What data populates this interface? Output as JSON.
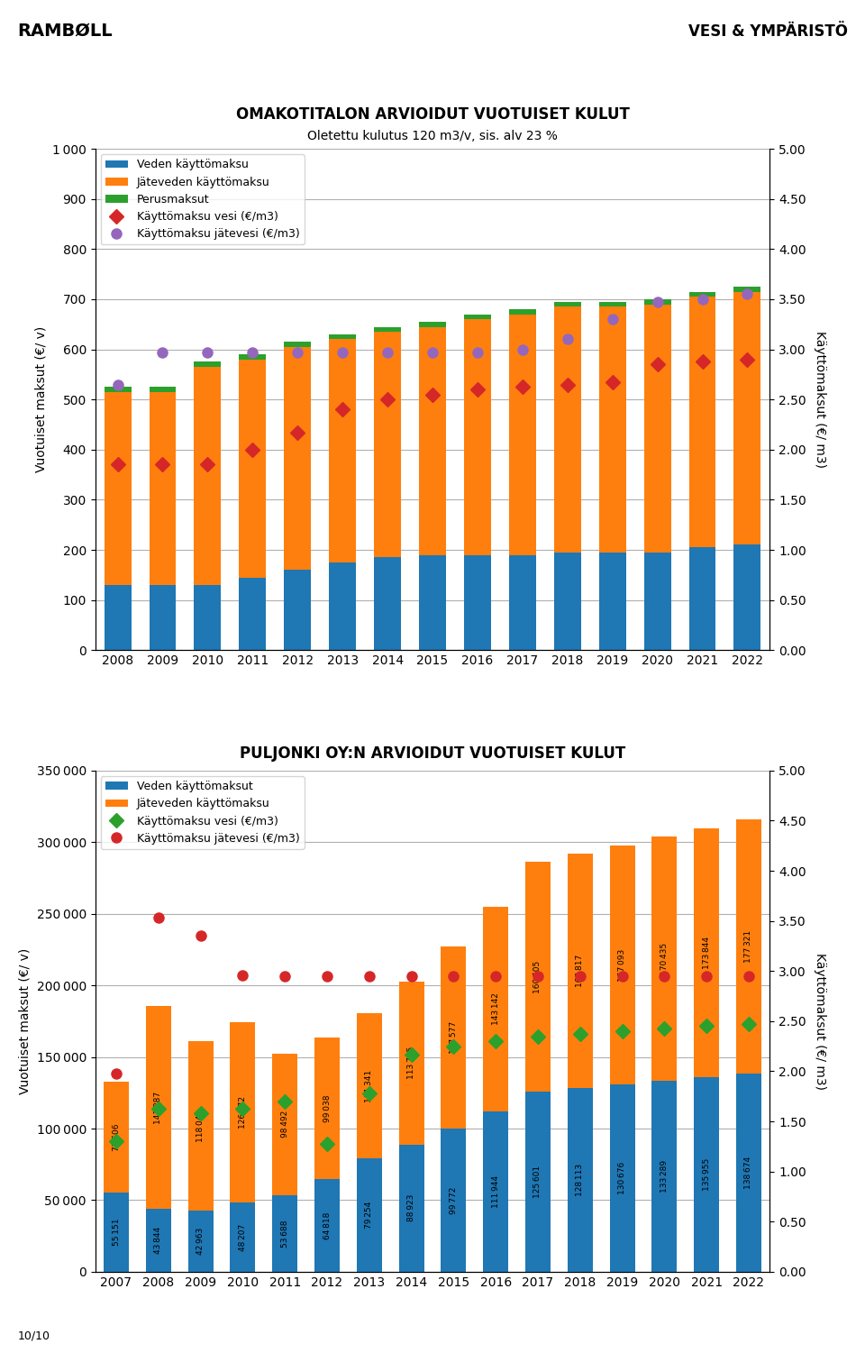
{
  "annotations": [
    "RAMBØLL",
    "VESI & YMPÄRISTÖ",
    "10/10"
  ],
  "chart_data": [
    {
      "type": "bar",
      "stacked": true,
      "grid": true,
      "legend": "upper left",
      "title": "OMAKOTITALON ARVIOIDUT VUOTUISET KULUT",
      "subtitle": "Oletettu kulutus 120 m3/v, sis. alv 23 %",
      "y_label": "Vuotuiset maksut (€/ v)",
      "y2_label": "Käyttömaksut (€/ m3)",
      "categories": [
        "2008",
        "2009",
        "2010",
        "2011",
        "2012",
        "2013",
        "2014",
        "2015",
        "2016",
        "2017",
        "2018",
        "2019",
        "2020",
        "2021",
        "2022"
      ],
      "ylim": [
        0,
        1000
      ],
      "yticks": [
        0,
        100,
        200,
        300,
        400,
        500,
        600,
        700,
        800,
        900,
        {
          "value": 1000,
          "label": "1 000"
        }
      ],
      "y2lim": [
        0,
        5
      ],
      "y2ticks": [
        {
          "value": 0,
          "label": "0.00"
        },
        {
          "value": 0.5,
          "label": "0.50"
        },
        {
          "value": 1,
          "label": "1.00"
        },
        {
          "value": 1.5,
          "label": "1.50"
        },
        {
          "value": 2,
          "label": "2.00"
        },
        {
          "value": 2.5,
          "label": "2.50"
        },
        {
          "value": 3,
          "label": "3.00"
        },
        {
          "value": 3.5,
          "label": "3.50"
        },
        {
          "value": 4,
          "label": "4.00"
        },
        {
          "value": 4.5,
          "label": "4.50"
        },
        {
          "value": 5,
          "label": "5.00"
        }
      ],
      "series": [
        {
          "name": "Veden käyttömaksu",
          "values": [
            130,
            130,
            130,
            145,
            160,
            175,
            185,
            190,
            190,
            190,
            195,
            195,
            195,
            205,
            210
          ]
        },
        {
          "name": "Jäteveden käyttömaksu",
          "values": [
            385,
            385,
            435,
            435,
            445,
            445,
            450,
            455,
            470,
            480,
            490,
            490,
            495,
            500,
            505
          ]
        },
        {
          "name": "Perusmaksut",
          "values": [
            10,
            10,
            10,
            10,
            10,
            10,
            10,
            10,
            10,
            10,
            10,
            10,
            10,
            10,
            10
          ]
        },
        {
          "name": "Käyttömaksu vesi (€/m3)",
          "type": "scatter",
          "axis": "y2",
          "marker": "diamond",
          "values": [
            1.85,
            1.85,
            1.85,
            2.0,
            2.17,
            2.4,
            2.5,
            2.55,
            2.6,
            2.63,
            2.65,
            2.67,
            2.85,
            2.88,
            2.9
          ]
        },
        {
          "name": "Käyttömaksu jätevesi (€/m3)",
          "type": "scatter",
          "axis": "y2",
          "marker": "circle",
          "values": [
            2.65,
            2.97,
            2.97,
            2.97,
            2.97,
            2.97,
            2.97,
            2.97,
            2.97,
            3.0,
            3.1,
            3.3,
            3.47,
            3.5,
            3.55
          ]
        }
      ]
    },
    {
      "type": "bar",
      "stacked": true,
      "grid": true,
      "legend": "upper left",
      "data_labels": true,
      "title": "PULJONKI OY:N ARVIOIDUT VUOTUISET KULUT",
      "y_label": "Vuotuiset maksut (€/ v)",
      "y2_label": "Käyttömaksut (€/ m3)",
      "categories": [
        "2007",
        "2008",
        "2009",
        "2010",
        "2011",
        "2012",
        "2013",
        "2014",
        "2015",
        "2016",
        "2017",
        "2018",
        "2019",
        "2020",
        "2021",
        "2022"
      ],
      "ylim": [
        0,
        350000
      ],
      "yticks": [
        0,
        {
          "value": 50000,
          "label": "50 000"
        },
        {
          "value": 100000,
          "label": "100 000"
        },
        {
          "value": 150000,
          "label": "150 000"
        },
        {
          "value": 200000,
          "label": "200 000"
        },
        {
          "value": 250000,
          "label": "250 000"
        },
        {
          "value": 300000,
          "label": "300 000"
        },
        {
          "value": 350000,
          "label": "350 000"
        }
      ],
      "y2lim": [
        0,
        5
      ],
      "y2ticks": [
        {
          "value": 0,
          "label": "0.00"
        },
        {
          "value": 0.5,
          "label": "0.50"
        },
        {
          "value": 1,
          "label": "1.00"
        },
        {
          "value": 1.5,
          "label": "1.50"
        },
        {
          "value": 2,
          "label": "2.00"
        },
        {
          "value": 2.5,
          "label": "2.50"
        },
        {
          "value": 3,
          "label": "3.00"
        },
        {
          "value": 3.5,
          "label": "3.50"
        },
        {
          "value": 4,
          "label": "4.00"
        },
        {
          "value": 4.5,
          "label": "4.50"
        },
        {
          "value": 5,
          "label": "5.00"
        }
      ],
      "series": [
        {
          "name": "Veden käyttömaksut",
          "values": [
            55151,
            43844,
            42963,
            48207,
            53688,
            64818,
            79254,
            88923,
            99772,
            111944,
            125601,
            128113,
            130676,
            133289,
            135955,
            138674
          ],
          "value_labels": [
            "55 151",
            "43 844",
            "42 963",
            "48 207",
            "53 688",
            "64 818",
            "79 254",
            "88 923",
            "99 772",
            "111 944",
            "125 601",
            "128 113",
            "130 676",
            "133 289",
            "135 955",
            "138 674"
          ]
        },
        {
          "name": "Jäteveden käyttömaksu",
          "values": [
            77606,
            141887,
            118041,
            126372,
            98492,
            99038,
            101341,
            113705,
            127577,
            143142,
            160605,
            163817,
            167093,
            170435,
            173844,
            177321
          ],
          "value_labels": [
            "77 606",
            "141 887",
            "118 041",
            "126 372",
            "98 492",
            "99 038",
            "101 341",
            "113 705",
            "127 577",
            "143 142",
            "160 605",
            "163 817",
            "167 093",
            "170 435",
            "173 844",
            "177 321"
          ]
        },
        {
          "name": "Käyttömaksu vesi (€/m3)",
          "type": "scatter",
          "axis": "y2",
          "marker": "diamond",
          "values": [
            1.3,
            1.63,
            1.58,
            1.63,
            1.7,
            1.28,
            1.78,
            2.17,
            2.25,
            2.3,
            2.35,
            2.37,
            2.4,
            2.43,
            2.45,
            2.47
          ]
        },
        {
          "name": "Käyttömaksu jätevesi (€/m3)",
          "type": "scatter",
          "axis": "y2",
          "marker": "circle",
          "values": [
            1.98,
            3.53,
            3.35,
            2.96,
            2.95,
            2.95,
            2.95,
            2.95,
            2.95,
            2.95,
            2.95,
            2.95,
            2.95,
            2.95,
            2.95,
            2.95
          ]
        }
      ]
    }
  ]
}
